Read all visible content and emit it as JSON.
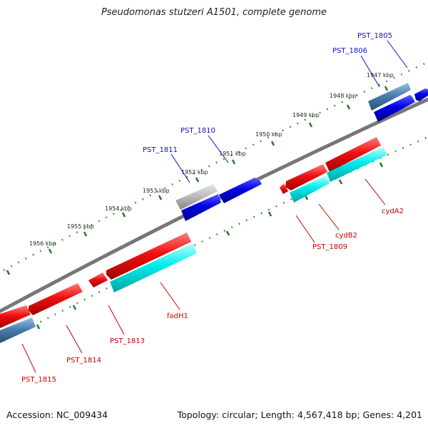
{
  "title": "Pseudomonas stutzeri A1501, complete genome",
  "footer": {
    "accession": "Accession: NC_009434",
    "stats": "Topology: circular; Length: 4,567,418 bp; Genes: 4,201"
  },
  "colors": {
    "forward_gene": "#0000e0",
    "reverse_gene": "#ee1111",
    "rna_or_other": "#4a7fae",
    "pseudo": "#b0b0b0",
    "reverse_cds_track": "#00eaea",
    "backbone": "#777777",
    "tick": "#1f7a1f",
    "forward_label": "#1010c0",
    "reverse_label": "#cc0000"
  },
  "scale_labels": [
    "1947 kbp",
    "1948 kbp",
    "1949 kbp",
    "1950 kbp",
    "1951 kbp",
    "1952 kbp",
    "1953 kbp",
    "1954 kbp",
    "1955 kbp",
    "1956 kbp"
  ],
  "forward_gene_labels": [
    "PST_1805",
    "PST_1806",
    "PST_1810",
    "PST_1811"
  ],
  "reverse_gene_labels": [
    "cydA2",
    "cydB2",
    "PST_1809",
    "fadH1",
    "PST_1813",
    "PST_1814",
    "PST_1815"
  ]
}
